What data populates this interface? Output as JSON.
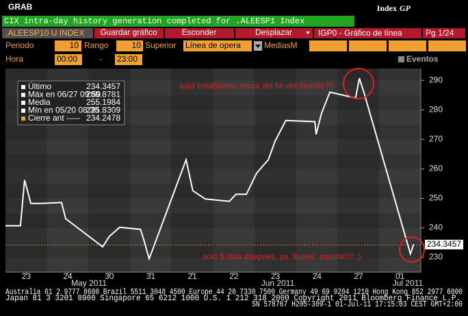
{
  "header": {
    "left": "GRAB",
    "right_prefix": "Index",
    "right_code": "GP"
  },
  "banner": "CIX intra-day history generation completed for .ALEESP1 Index",
  "toolbar": {
    "ticker": ".ALEESP10 U INDEX",
    "buttons": [
      "Guardar gráfico",
      "Esconder",
      "Desplazar"
    ],
    "chart_name": "IGP0 - Gráfico de línea",
    "page": "Pg 1/24"
  },
  "settings": {
    "period_label": "Periodo",
    "period": 10,
    "range_label": "Rango",
    "range": 10,
    "upper_label": "Superior",
    "upper": "Línea de opera",
    "ma_label": "MediasM",
    "hour_label": "Hora",
    "hour_from": "00:00",
    "hour_sep": "-",
    "hour_to": "23:00",
    "events_label": "Eventos"
  },
  "chart_data": {
    "type": "line",
    "x": [
      0,
      0.36,
      0.46,
      0.53,
      0.61,
      0.86,
      1.35,
      1.45,
      2.34,
      2.5,
      2.75,
      3.25,
      3.33,
      3.46,
      4.35,
      4.51,
      4.81,
      5.39,
      5.55,
      5.8,
      6.05,
      6.33,
      6.49,
      6.75,
      7.45,
      7.48,
      7.61,
      7.81,
      8.43,
      8.52,
      8.63,
      9.75,
      9.83
    ],
    "series": [
      {
        "name": "Último",
        "color": "#ffffff",
        "values": [
          240.7,
          240.7,
          256.2,
          252.6,
          248.3,
          248.3,
          248.6,
          243.1,
          233.6,
          237.1,
          240.2,
          239.5,
          236,
          229.5,
          263.1,
          252.6,
          249.8,
          249,
          251.4,
          251.4,
          258.6,
          263.1,
          269.3,
          276.4,
          276,
          271.7,
          278.8,
          286,
          284,
          290.7,
          286,
          231.2,
          234.5
        ]
      }
    ],
    "xlim": [
      0,
      10
    ],
    "xticks": [
      {
        "value": 0.5,
        "label": "23"
      },
      {
        "value": 1.5,
        "label": "24"
      },
      {
        "value": 2.5,
        "label": "30"
      },
      {
        "value": 3.5,
        "label": "31"
      },
      {
        "value": 4.5,
        "label": "21"
      },
      {
        "value": 5.5,
        "label": "22"
      },
      {
        "value": 6.5,
        "label": "23"
      },
      {
        "value": 7.5,
        "label": "24"
      },
      {
        "value": 8.5,
        "label": "27"
      },
      {
        "value": 9.5,
        "label": "01"
      }
    ],
    "x_groups": [
      "May 2011",
      "Jun 2011",
      "Jul 2011"
    ],
    "ylim": [
      225,
      294
    ],
    "yticks": [
      230,
      240,
      250,
      260,
      270,
      280,
      290
    ],
    "last_price": 234.3457,
    "prev_close": 234.2478,
    "prev_close_color": "#f0a030",
    "info_box": [
      {
        "label": "Último",
        "value": 234.3457
      },
      {
        "label": "Máx en 06/27 09:50",
        "value": 289.8781
      },
      {
        "label": "Media",
        "value": 255.1984
      },
      {
        "label": "Mín en 05/20 08:30",
        "value": 225.8309
      },
      {
        "label": "Cierre ant -----",
        "value": 234.2478
      }
    ],
    "annotations": [
      "aqui estabamos cerca del fin del mundo !!!",
      "solo 5 dias dsepues, ya ¨llueve¨ menos!!!! :)"
    ]
  },
  "footer": [
    "Australia 61 2 9777 8600 Brazil 5511 3048 4500 Europe 44 20 7330 7500 Germany 49 69 9204 1210 Hong Kong 852 2977 6000",
    "Japan 81 3 3201 8900       Singapore 65 6212 1000       U.S. 1 212 318 2000          Copyright 2011 Bloomberg Finance L.P.",
    "SN 578767 H205-309-1 01-Jul-11 17:15:03 CEST GMT+2:00"
  ]
}
